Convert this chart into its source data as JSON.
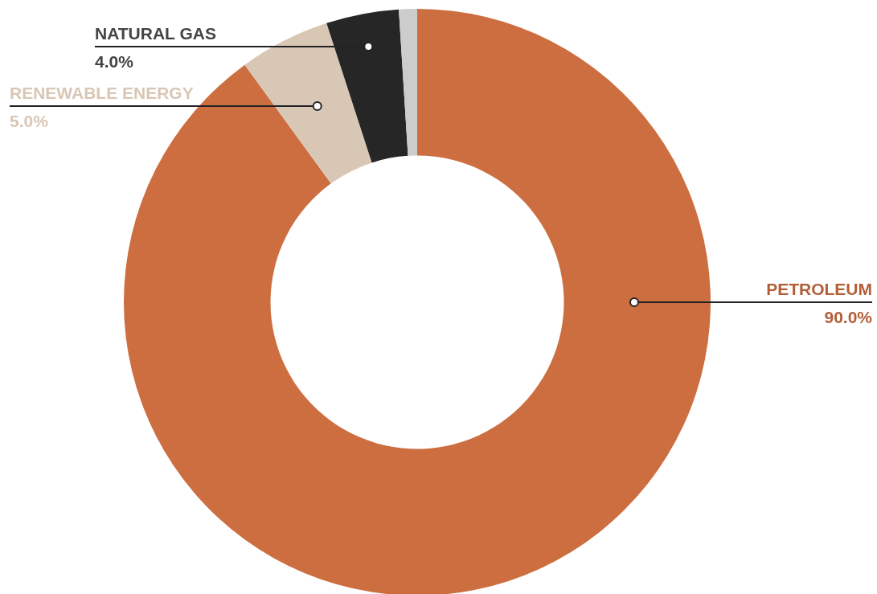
{
  "chart_data": {
    "type": "donut",
    "categories": [
      "PETROLEUM",
      "RENEWABLE ENERGY",
      "NATURAL GAS",
      null
    ],
    "values": [
      90,
      5,
      4,
      1
    ],
    "colors": [
      "#cd6e41",
      "#d9c7b5",
      "#262626",
      "#cccccc"
    ],
    "value_labels": [
      "90.0%",
      "5.0%",
      "4.0%",
      null
    ]
  }
}
